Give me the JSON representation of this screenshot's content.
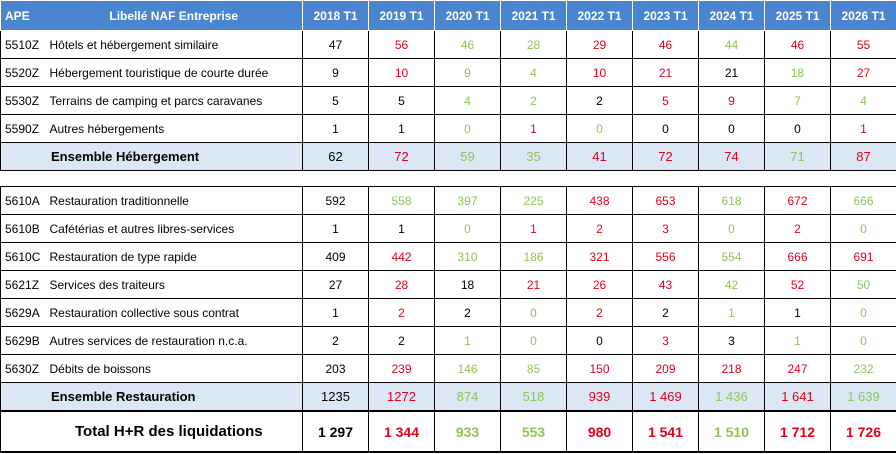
{
  "headers": {
    "ape": "APE",
    "libelle": "Libellé NAF Entreprise",
    "years": [
      "2018 T1",
      "2019 T1",
      "2020 T1",
      "2021 T1",
      "2022 T1",
      "2023 T1",
      "2024 T1",
      "2025 T1",
      "2026 T1"
    ]
  },
  "colors": {
    "k": "#000000",
    "r": "#e3001b",
    "g": "#8cc557"
  },
  "hebergement": {
    "rows": [
      {
        "ape": "5510Z",
        "label": "Hôtels et hébergement similaire",
        "values": [
          "47",
          "56",
          "46",
          "28",
          "29",
          "46",
          "44",
          "46",
          "55"
        ],
        "colors": [
          "k",
          "r",
          "g",
          "g",
          "r",
          "r",
          "g",
          "r",
          "r"
        ]
      },
      {
        "ape": "5520Z",
        "label": "Hébergement touristique de courte durée",
        "values": [
          "9",
          "10",
          "9",
          "4",
          "10",
          "21",
          "21",
          "18",
          "27"
        ],
        "colors": [
          "k",
          "r",
          "g",
          "g",
          "r",
          "r",
          "k",
          "g",
          "r"
        ]
      },
      {
        "ape": "5530Z",
        "label": "Terrains de camping et parcs caravanes",
        "values": [
          "5",
          "5",
          "4",
          "2",
          "2",
          "5",
          "9",
          "7",
          "4"
        ],
        "colors": [
          "k",
          "k",
          "g",
          "g",
          "k",
          "r",
          "r",
          "g",
          "g"
        ]
      },
      {
        "ape": "5590Z",
        "label": "Autres hébergements",
        "values": [
          "1",
          "1",
          "0",
          "1",
          "0",
          "0",
          "0",
          "0",
          "1"
        ],
        "colors": [
          "k",
          "k",
          "g",
          "r",
          "g",
          "k",
          "k",
          "k",
          "r"
        ]
      }
    ],
    "total": {
      "label": "Ensemble Hébergement",
      "values": [
        "62",
        "72",
        "59",
        "35",
        "41",
        "72",
        "74",
        "71",
        "87"
      ],
      "colors": [
        "k",
        "r",
        "g",
        "g",
        "r",
        "r",
        "r",
        "g",
        "r"
      ]
    }
  },
  "restauration": {
    "rows": [
      {
        "ape": "5610A",
        "label": "Restauration traditionnelle",
        "values": [
          "592",
          "558",
          "397",
          "225",
          "438",
          "653",
          "618",
          "672",
          "666"
        ],
        "colors": [
          "k",
          "g",
          "g",
          "g",
          "r",
          "r",
          "g",
          "r",
          "g"
        ]
      },
      {
        "ape": "5610B",
        "label": "Cafétérias et autres libres-services",
        "values": [
          "1",
          "1",
          "0",
          "1",
          "2",
          "3",
          "0",
          "2",
          "0"
        ],
        "colors": [
          "k",
          "k",
          "g",
          "r",
          "r",
          "r",
          "g",
          "r",
          "g"
        ]
      },
      {
        "ape": "5610C",
        "label": "Restauration de type rapide",
        "values": [
          "409",
          "442",
          "310",
          "186",
          "321",
          "556",
          "554",
          "666",
          "691"
        ],
        "colors": [
          "k",
          "r",
          "g",
          "g",
          "r",
          "r",
          "g",
          "r",
          "r"
        ]
      },
      {
        "ape": "5621Z",
        "label": "Services des traiteurs",
        "values": [
          "27",
          "28",
          "18",
          "21",
          "26",
          "43",
          "42",
          "52",
          "50"
        ],
        "colors": [
          "k",
          "r",
          "k",
          "r",
          "r",
          "r",
          "g",
          "r",
          "g"
        ]
      },
      {
        "ape": "5629A",
        "label": "Restauration collective sous contrat",
        "values": [
          "1",
          "2",
          "2",
          "0",
          "2",
          "2",
          "1",
          "1",
          "0"
        ],
        "colors": [
          "k",
          "r",
          "k",
          "g",
          "r",
          "k",
          "g",
          "k",
          "g"
        ]
      },
      {
        "ape": "5629B",
        "label": "Autres services de restauration n.c.a.",
        "values": [
          "2",
          "2",
          "1",
          "0",
          "0",
          "3",
          "3",
          "1",
          "0"
        ],
        "colors": [
          "k",
          "k",
          "g",
          "g",
          "k",
          "r",
          "k",
          "g",
          "g"
        ]
      },
      {
        "ape": "5630Z",
        "label": "Débits de boissons",
        "values": [
          "203",
          "239",
          "146",
          "85",
          "150",
          "209",
          "218",
          "247",
          "232"
        ],
        "colors": [
          "k",
          "r",
          "g",
          "g",
          "r",
          "r",
          "r",
          "r",
          "g"
        ]
      }
    ],
    "total": {
      "label": "Ensemble Restauration",
      "values": [
        "1235",
        "1272",
        "874",
        "518",
        "939",
        "1 469",
        "1 436",
        "1 641",
        "1 639"
      ],
      "colors": [
        "k",
        "r",
        "g",
        "g",
        "r",
        "r",
        "g",
        "r",
        "g"
      ]
    }
  },
  "grand_total": {
    "label": "Total H+R des liquidations",
    "values": [
      "1 297",
      "1 344",
      "933",
      "553",
      "980",
      "1 541",
      "1 510",
      "1 712",
      "1 726"
    ],
    "colors": [
      "k",
      "r",
      "g",
      "g",
      "r",
      "r",
      "g",
      "r",
      "r"
    ]
  }
}
